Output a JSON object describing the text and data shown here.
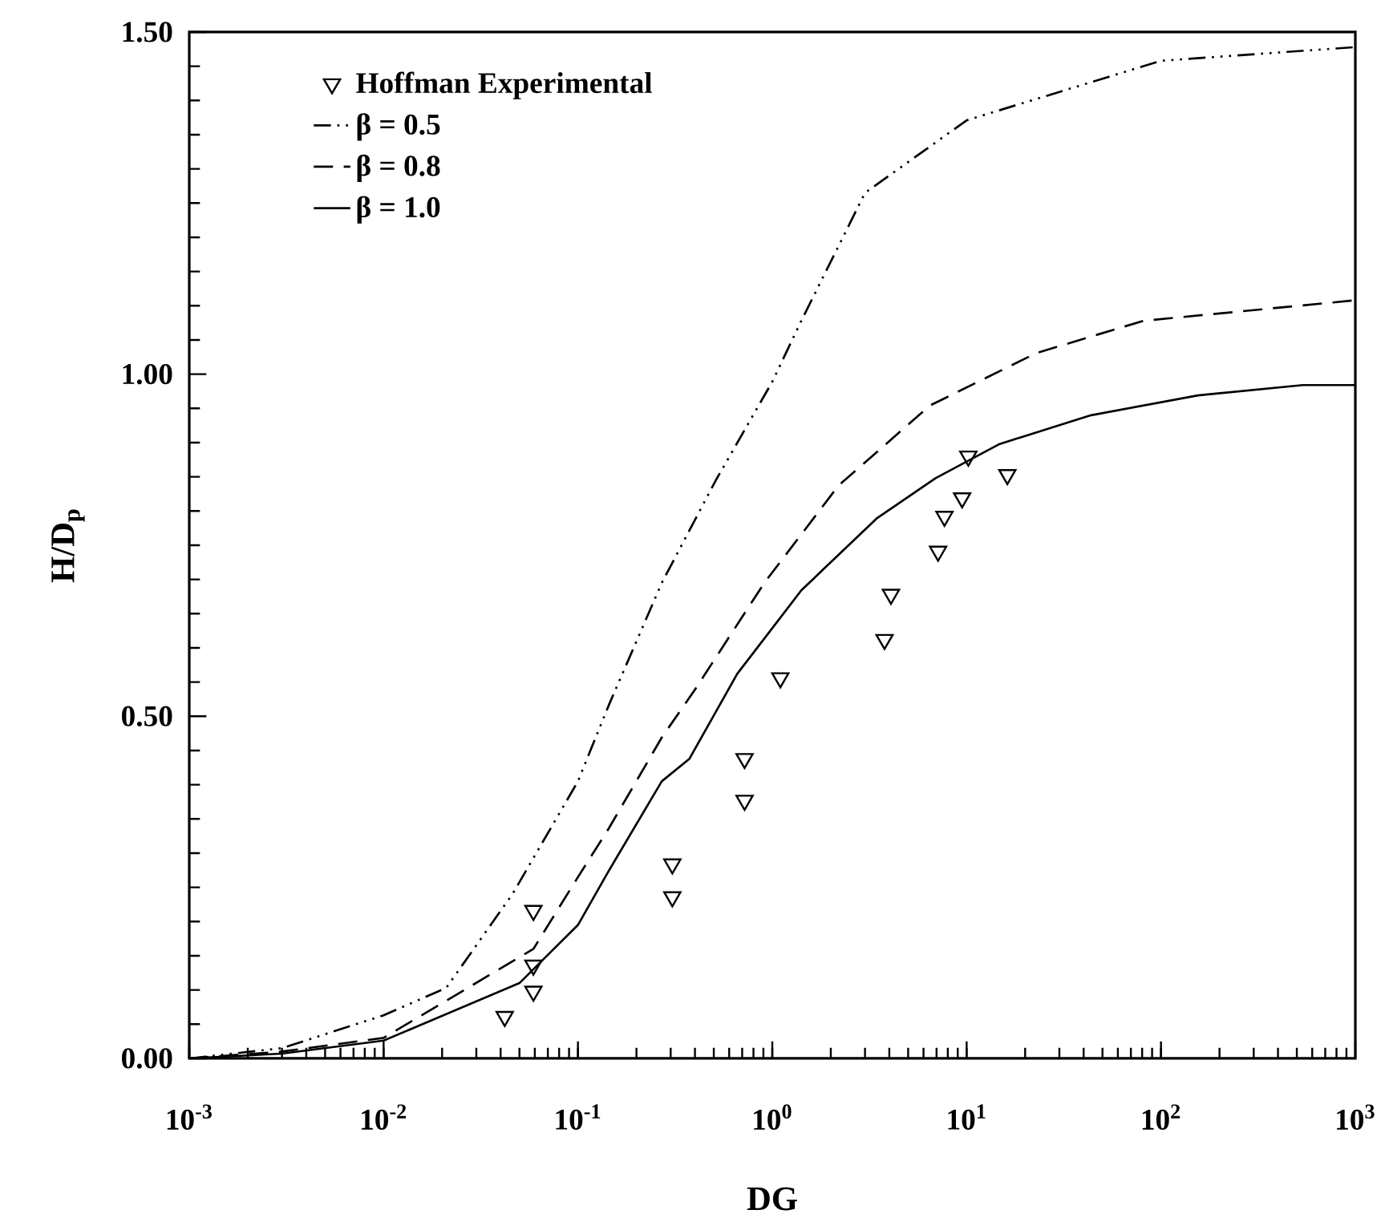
{
  "chart_data": {
    "type": "line",
    "xlabel": "DG",
    "ylabel": "H/D$_{p}$",
    "log": "x",
    "xlim": [
      0.001,
      1000
    ],
    "ylim": [
      0,
      1.5
    ],
    "xticks": [
      {
        "value": 0.001,
        "label": "10$^{-3}$"
      },
      {
        "value": 0.01,
        "label": "10$^{-2}$"
      },
      {
        "value": 0.1,
        "label": "10$^{-1}$"
      },
      {
        "value": 1,
        "label": "10$^{0}$"
      },
      {
        "value": 10,
        "label": "10$^{1}$"
      },
      {
        "value": 100,
        "label": "10$^{2}$"
      },
      {
        "value": 1000,
        "label": "10$^{3}$"
      }
    ],
    "yticks": [
      {
        "value": 0,
        "label": "0.00"
      },
      {
        "value": 0.5,
        "label": "0.50"
      },
      {
        "value": 1,
        "label": "1.00"
      },
      {
        "value": 1.5,
        "label": "1.50"
      }
    ],
    "grid": false,
    "legend": "top left",
    "series": [
      {
        "name": "Hoffman Experimental",
        "type": "scatter",
        "marker": "triangle",
        "color": "#000000",
        "x": [
          0.042,
          0.059,
          0.059,
          0.059,
          0.306,
          0.306,
          0.72,
          0.72,
          1.1,
          3.78,
          4.08,
          7.13,
          7.69,
          9.48,
          10.2,
          16.2
        ],
        "values": [
          0.061,
          0.098,
          0.136,
          0.216,
          0.236,
          0.284,
          0.377,
          0.438,
          0.556,
          0.612,
          0.678,
          0.741,
          0.792,
          0.819,
          0.88,
          0.853
        ]
      },
      {
        "name": "β = 0.5",
        "line_style": "dashdotdotted",
        "color": "#000000",
        "x": [
          0.001,
          0.003,
          0.01,
          0.021,
          0.046,
          0.1,
          0.144,
          0.27,
          0.51,
          1.0,
          1.41,
          3.0,
          10,
          100,
          1000
        ],
        "values": [
          0,
          0.015,
          0.063,
          0.103,
          0.24,
          0.405,
          0.516,
          0.695,
          0.844,
          0.989,
          1.078,
          1.265,
          1.371,
          1.458,
          1.478
        ]
      },
      {
        "name": "β = 0.8",
        "line_style": "dashed",
        "color": "#000000",
        "x": [
          0.001,
          0.003,
          0.01,
          0.059,
          0.1,
          0.144,
          0.27,
          0.4,
          0.91,
          2.19,
          6.46,
          22.9,
          81.3,
          1000
        ],
        "values": [
          0,
          0.01,
          0.03,
          0.16,
          0.265,
          0.336,
          0.469,
          0.539,
          0.695,
          0.837,
          0.954,
          1.031,
          1.078,
          1.108
        ]
      },
      {
        "name": "β = 1.0",
        "line_style": "solid",
        "color": "#000000",
        "x": [
          0.001,
          0.003,
          0.01,
          0.05,
          0.1,
          0.144,
          0.27,
          0.375,
          0.66,
          1.41,
          3.44,
          6.92,
          14.8,
          43.7,
          155,
          537,
          1000
        ],
        "values": [
          0,
          0.007,
          0.026,
          0.11,
          0.195,
          0.274,
          0.405,
          0.438,
          0.562,
          0.684,
          0.789,
          0.848,
          0.898,
          0.94,
          0.969,
          0.984,
          0.984
        ]
      }
    ]
  }
}
